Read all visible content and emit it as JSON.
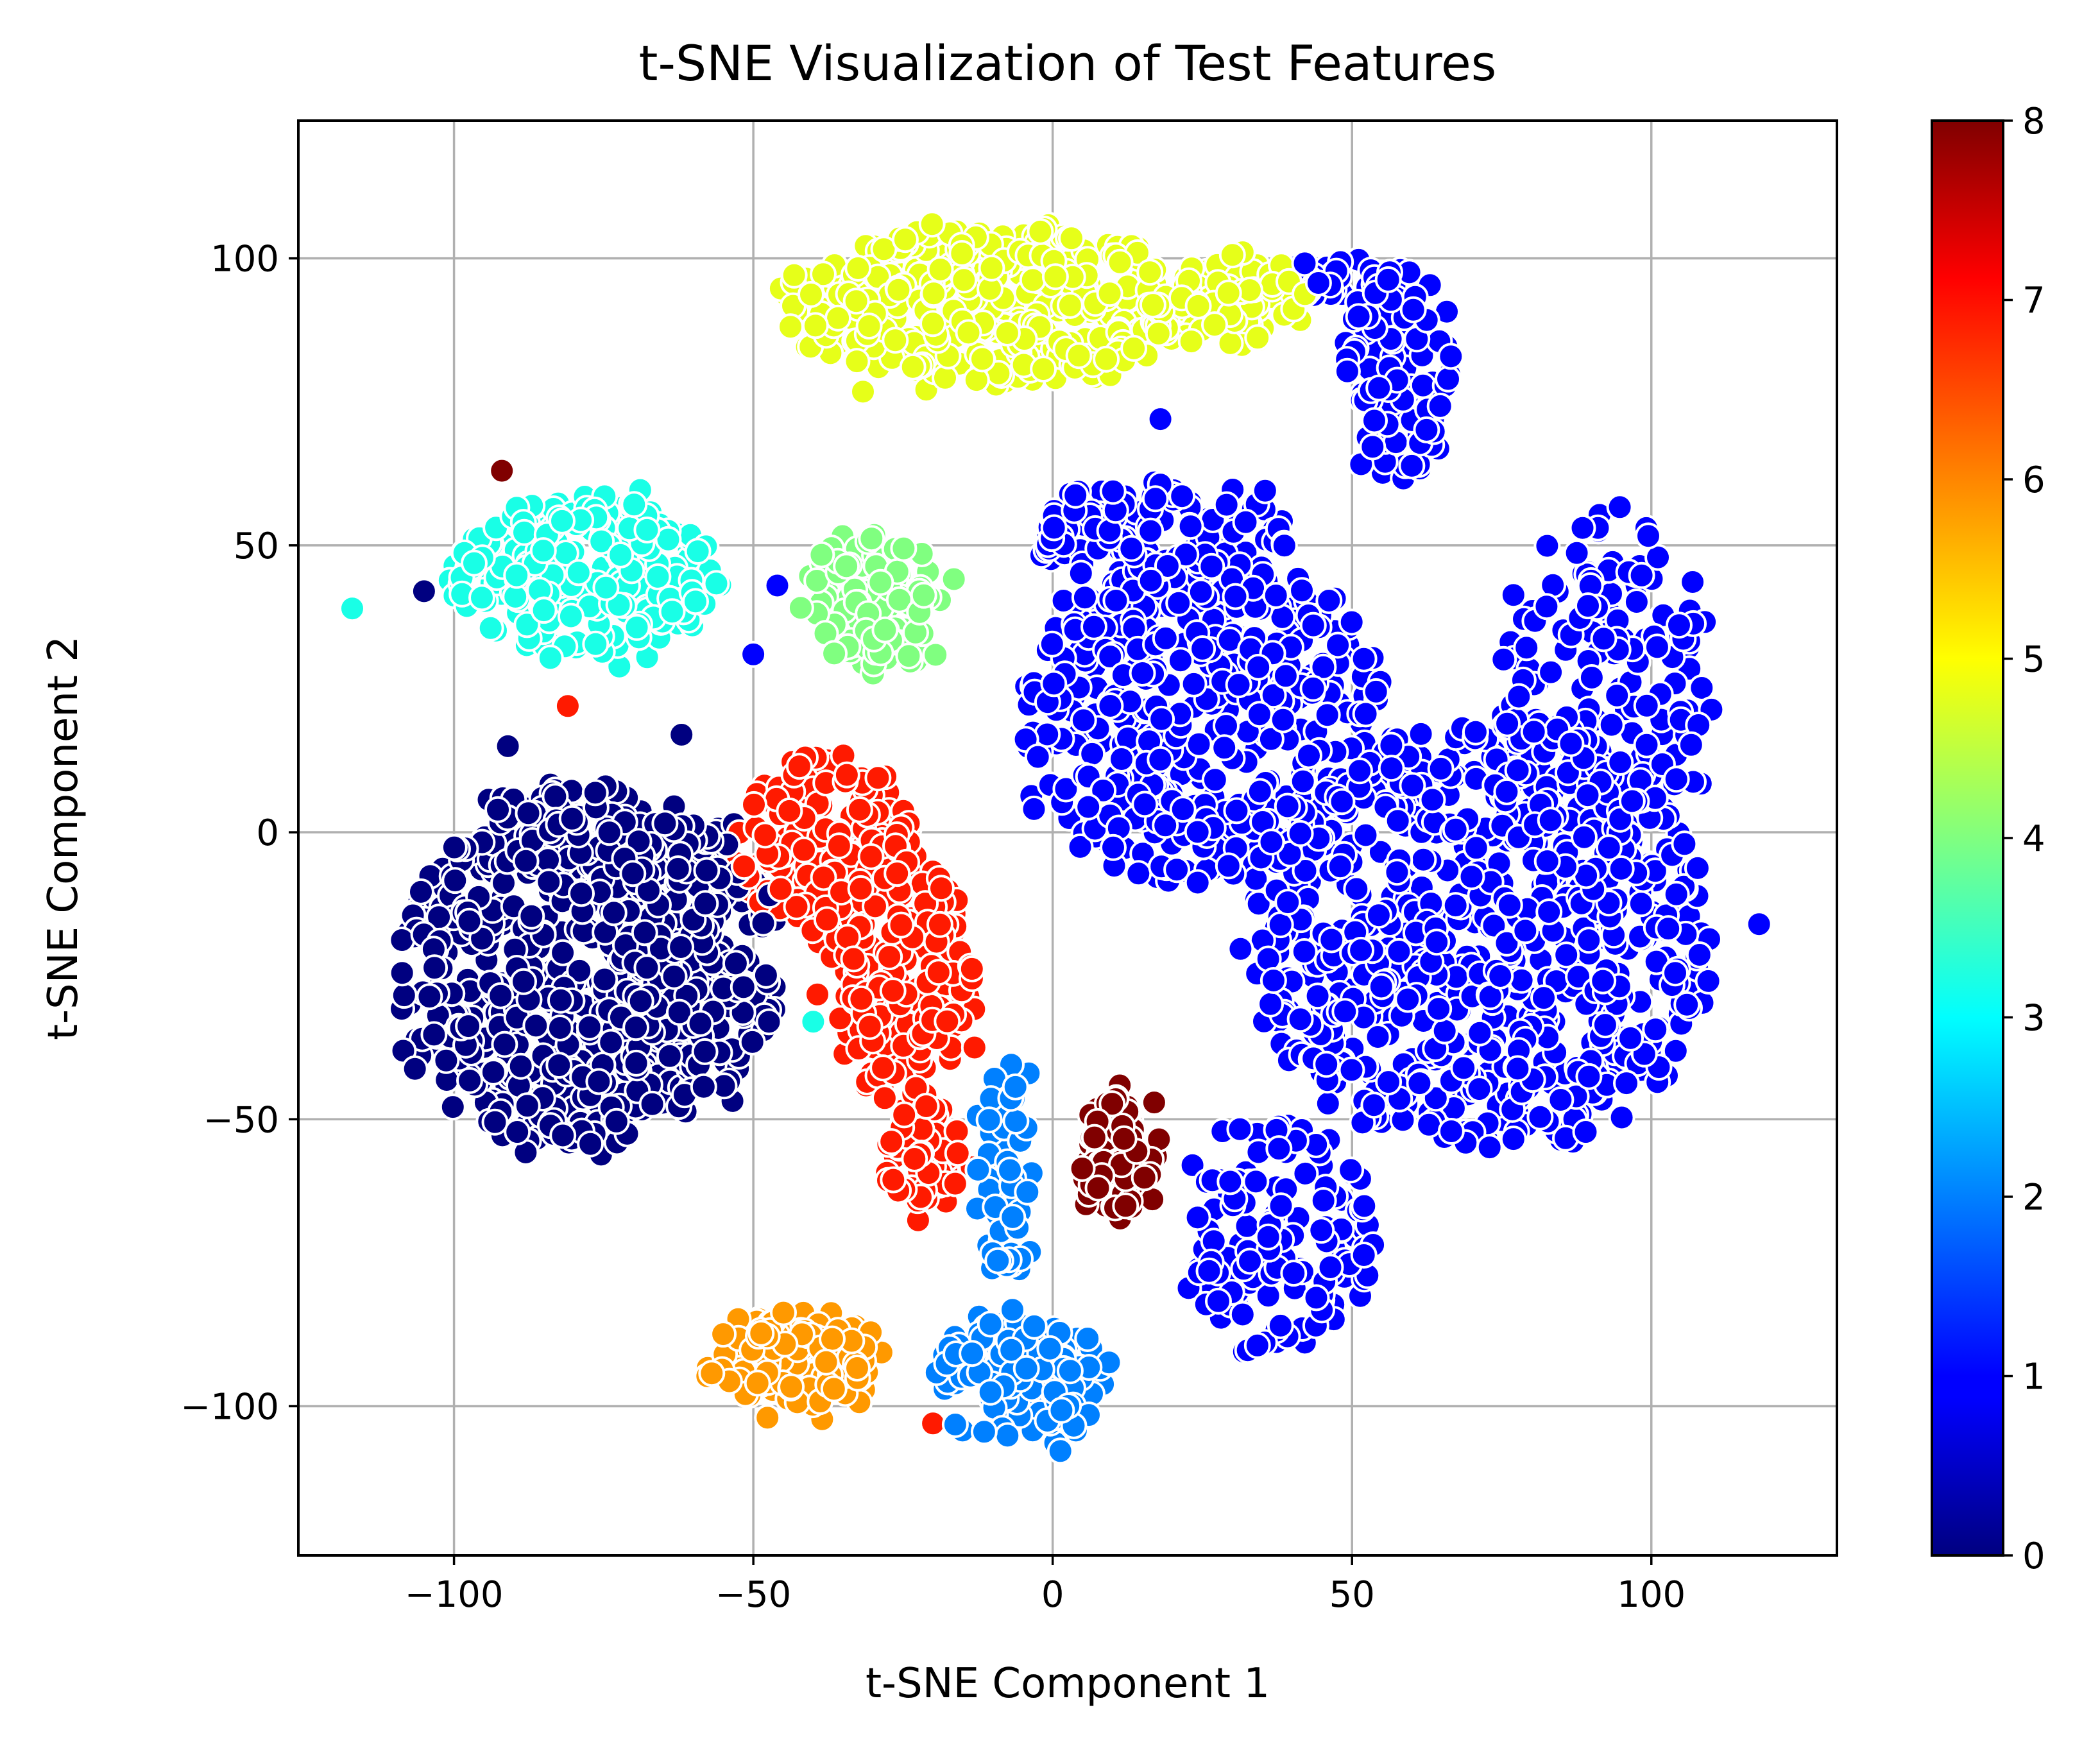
{
  "chart_data": {
    "type": "scatter",
    "title": "t-SNE Visualization of Test Features",
    "xlabel": "t-SNE Component 1",
    "ylabel": "t-SNE Component 2",
    "xlim": [
      -126,
      131
    ],
    "ylim": [
      -126,
      124
    ],
    "xticks": [
      -100,
      -50,
      0,
      50,
      100
    ],
    "xtick_labels": [
      "−100",
      "−50",
      "0",
      "50",
      "100"
    ],
    "yticks": [
      -100,
      -50,
      0,
      50,
      100
    ],
    "ytick_labels": [
      "−100",
      "−50",
      "0",
      "50",
      "100"
    ],
    "grid": true,
    "colormap": "jet",
    "colorbar": {
      "min": 0,
      "max": 8,
      "ticks": [
        0,
        1,
        2,
        3,
        4,
        5,
        6,
        7,
        8
      ],
      "tick_labels": [
        "0",
        "1",
        "2",
        "3",
        "4",
        "5",
        "6",
        "7",
        "8"
      ]
    },
    "marker_edge_color": "#ffffff",
    "clusters": [
      {
        "label": 0,
        "color": "#000080",
        "blobs": [
          {
            "cx": -82,
            "cy": -25,
            "rx": 27,
            "ry": 32,
            "n": 520
          },
          {
            "cx": -60,
            "cy": -22,
            "rx": 14,
            "ry": 26,
            "n": 220
          },
          {
            "cx": -78,
            "cy": 0,
            "rx": 22,
            "ry": 8,
            "n": 80
          }
        ]
      },
      {
        "label": 1,
        "color": "#0000ff",
        "blobs": [
          {
            "cx": 72,
            "cy": -18,
            "rx": 38,
            "ry": 38,
            "n": 700
          },
          {
            "cx": 25,
            "cy": 20,
            "rx": 30,
            "ry": 30,
            "n": 460
          },
          {
            "cx": 92,
            "cy": 25,
            "rx": 18,
            "ry": 30,
            "n": 180
          },
          {
            "cx": 38,
            "cy": -70,
            "rx": 16,
            "ry": 20,
            "n": 140
          },
          {
            "cx": 58,
            "cy": 80,
            "rx": 9,
            "ry": 18,
            "n": 100
          },
          {
            "cx": 48,
            "cy": 96,
            "rx": 12,
            "ry": 3,
            "n": 40
          },
          {
            "cx": 18,
            "cy": 52,
            "rx": 22,
            "ry": 8,
            "n": 120
          }
        ]
      },
      {
        "label": 2,
        "color": "#0080ff",
        "blobs": [
          {
            "cx": -5,
            "cy": -95,
            "rx": 14,
            "ry": 12,
            "n": 140
          },
          {
            "cx": -8,
            "cy": -60,
            "rx": 4,
            "ry": 20,
            "n": 60
          }
        ]
      },
      {
        "label": 3,
        "color": "#19ffe6",
        "blobs": [
          {
            "cx": -78,
            "cy": 45,
            "rx": 22,
            "ry": 14,
            "n": 260
          }
        ]
      },
      {
        "label": 4,
        "color": "#80ff80",
        "blobs": [
          {
            "cx": -30,
            "cy": 40,
            "rx": 12,
            "ry": 12,
            "n": 110
          }
        ]
      },
      {
        "label": 5,
        "color": "#e6ff19",
        "blobs": [
          {
            "cx": -12,
            "cy": 92,
            "rx": 34,
            "ry": 14,
            "n": 420
          },
          {
            "cx": 30,
            "cy": 92,
            "rx": 14,
            "ry": 8,
            "n": 90
          }
        ]
      },
      {
        "label": 6,
        "color": "#ff9900",
        "blobs": [
          {
            "cx": -43,
            "cy": -92,
            "rx": 14,
            "ry": 8,
            "n": 130
          }
        ]
      },
      {
        "label": 7,
        "color": "#ff1a00",
        "blobs": [
          {
            "cx": -38,
            "cy": -2,
            "rx": 14,
            "ry": 16,
            "n": 170
          },
          {
            "cx": -25,
            "cy": -25,
            "rx": 12,
            "ry": 22,
            "n": 190
          },
          {
            "cx": -22,
            "cy": -55,
            "rx": 6,
            "ry": 12,
            "n": 70
          }
        ]
      },
      {
        "label": 8,
        "color": "#800000",
        "blobs": [
          {
            "cx": 11,
            "cy": -57,
            "rx": 6,
            "ry": 11,
            "n": 80
          }
        ]
      }
    ],
    "outliers": [
      {
        "x": -92,
        "y": 63,
        "label": 8
      },
      {
        "x": -105,
        "y": 42,
        "label": 0
      },
      {
        "x": 17,
        "y": 88,
        "label": 1
      },
      {
        "x": 18,
        "y": 72,
        "label": 1
      },
      {
        "x": 30,
        "y": 93,
        "label": 1
      },
      {
        "x": -20,
        "y": -103,
        "label": 7
      },
      {
        "x": -40,
        "y": -33,
        "label": 3
      },
      {
        "x": -4,
        "y": -42,
        "label": 2
      },
      {
        "x": 118,
        "y": -16,
        "label": 1
      },
      {
        "x": -81,
        "y": 22,
        "label": 7
      },
      {
        "x": -91,
        "y": 15,
        "label": 0
      },
      {
        "x": -62,
        "y": 17,
        "label": 0
      },
      {
        "x": -117,
        "y": 39,
        "label": 3
      },
      {
        "x": -46,
        "y": 43,
        "label": 1
      },
      {
        "x": -50,
        "y": 31,
        "label": 1
      }
    ]
  }
}
